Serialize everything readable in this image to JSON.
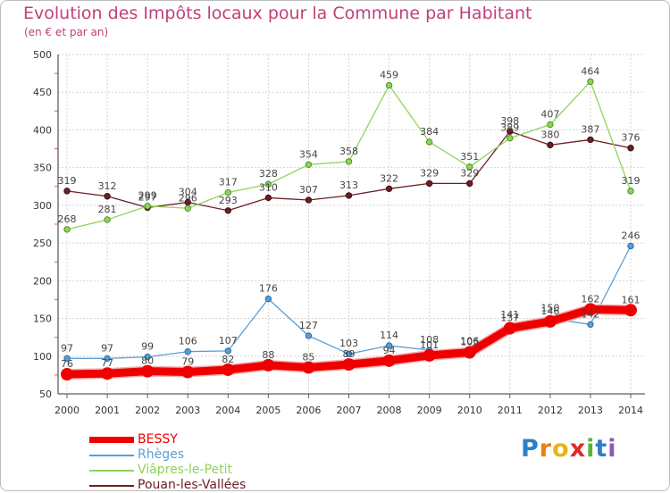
{
  "chart_data": {
    "type": "line",
    "title": "Evolution des Impôts locaux pour la Commune par Habitant",
    "subtitle": "(en € et par an)",
    "xlabel": "",
    "ylabel": "",
    "ylim": [
      50,
      500
    ],
    "yticks": [
      50,
      100,
      150,
      200,
      250,
      300,
      350,
      400,
      450,
      500
    ],
    "categories": [
      "2000",
      "2001",
      "2002",
      "2003",
      "2004",
      "2005",
      "2006",
      "2007",
      "2008",
      "2009",
      "2010",
      "2011",
      "2012",
      "2013",
      "2014"
    ],
    "grid": true,
    "legend_position": "bottom-left",
    "series": [
      {
        "name": "Pouan-les-Vallées",
        "color": "#6b1f24",
        "values": [
          319,
          312,
          297,
          304,
          293,
          310,
          307,
          313,
          322,
          329,
          329,
          398,
          380,
          387,
          376
        ]
      },
      {
        "name": "Viâpres-le-Petit",
        "color": "#8fd45a",
        "values": [
          268,
          281,
          299,
          296,
          317,
          328,
          354,
          358,
          459,
          384,
          351,
          389,
          407,
          464,
          319
        ]
      },
      {
        "name": "Rhèges",
        "color": "#5a9ed6",
        "values": [
          97,
          97,
          99,
          106,
          107,
          176,
          127,
          103,
          114,
          108,
          106,
          141,
          150,
          142,
          246
        ]
      },
      {
        "name": "BESSY",
        "color": "#ee0000",
        "values": [
          76,
          77,
          80,
          79,
          82,
          88,
          85,
          89,
          94,
          101,
          105,
          137,
          146,
          162,
          161
        ]
      }
    ],
    "label_text": [
      [
        "319",
        "312",
        "297",
        "304",
        "293",
        "310",
        "307",
        "313",
        "322",
        "329",
        "329",
        "398",
        "380",
        "387",
        "376"
      ],
      [
        "268",
        "281",
        "299",
        "296",
        "317",
        "328",
        "354",
        "358",
        "459",
        "384",
        "351",
        "389",
        "407",
        "464",
        "319"
      ],
      [
        "97",
        "97",
        "99",
        "106",
        "107",
        "176",
        "127",
        "103",
        "114",
        "108",
        "106",
        "141",
        "150",
        "142",
        "246"
      ],
      [
        "76",
        "77",
        "80",
        "79",
        "82",
        "88",
        "85",
        "89",
        "94",
        "101",
        "105",
        "137",
        "146",
        "162",
        "161"
      ]
    ]
  },
  "legend": {
    "items": [
      {
        "label": "BESSY",
        "color": "#ee0000"
      },
      {
        "label": "Rhèges",
        "color": "#5a9ed6"
      },
      {
        "label": "Viâpres-le-Petit",
        "color": "#8fd45a"
      },
      {
        "label": "Pouan-les-Vallées",
        "color": "#6b1f24"
      }
    ]
  },
  "logo": {
    "letters": [
      "P",
      "r",
      "o",
      "x",
      "i",
      "t",
      "i"
    ],
    "colors": [
      "#2d7fc8",
      "#e87d1e",
      "#e8b21e",
      "#e02a2a",
      "#57b533",
      "#2d7fc8",
      "#8b5bb5"
    ]
  }
}
